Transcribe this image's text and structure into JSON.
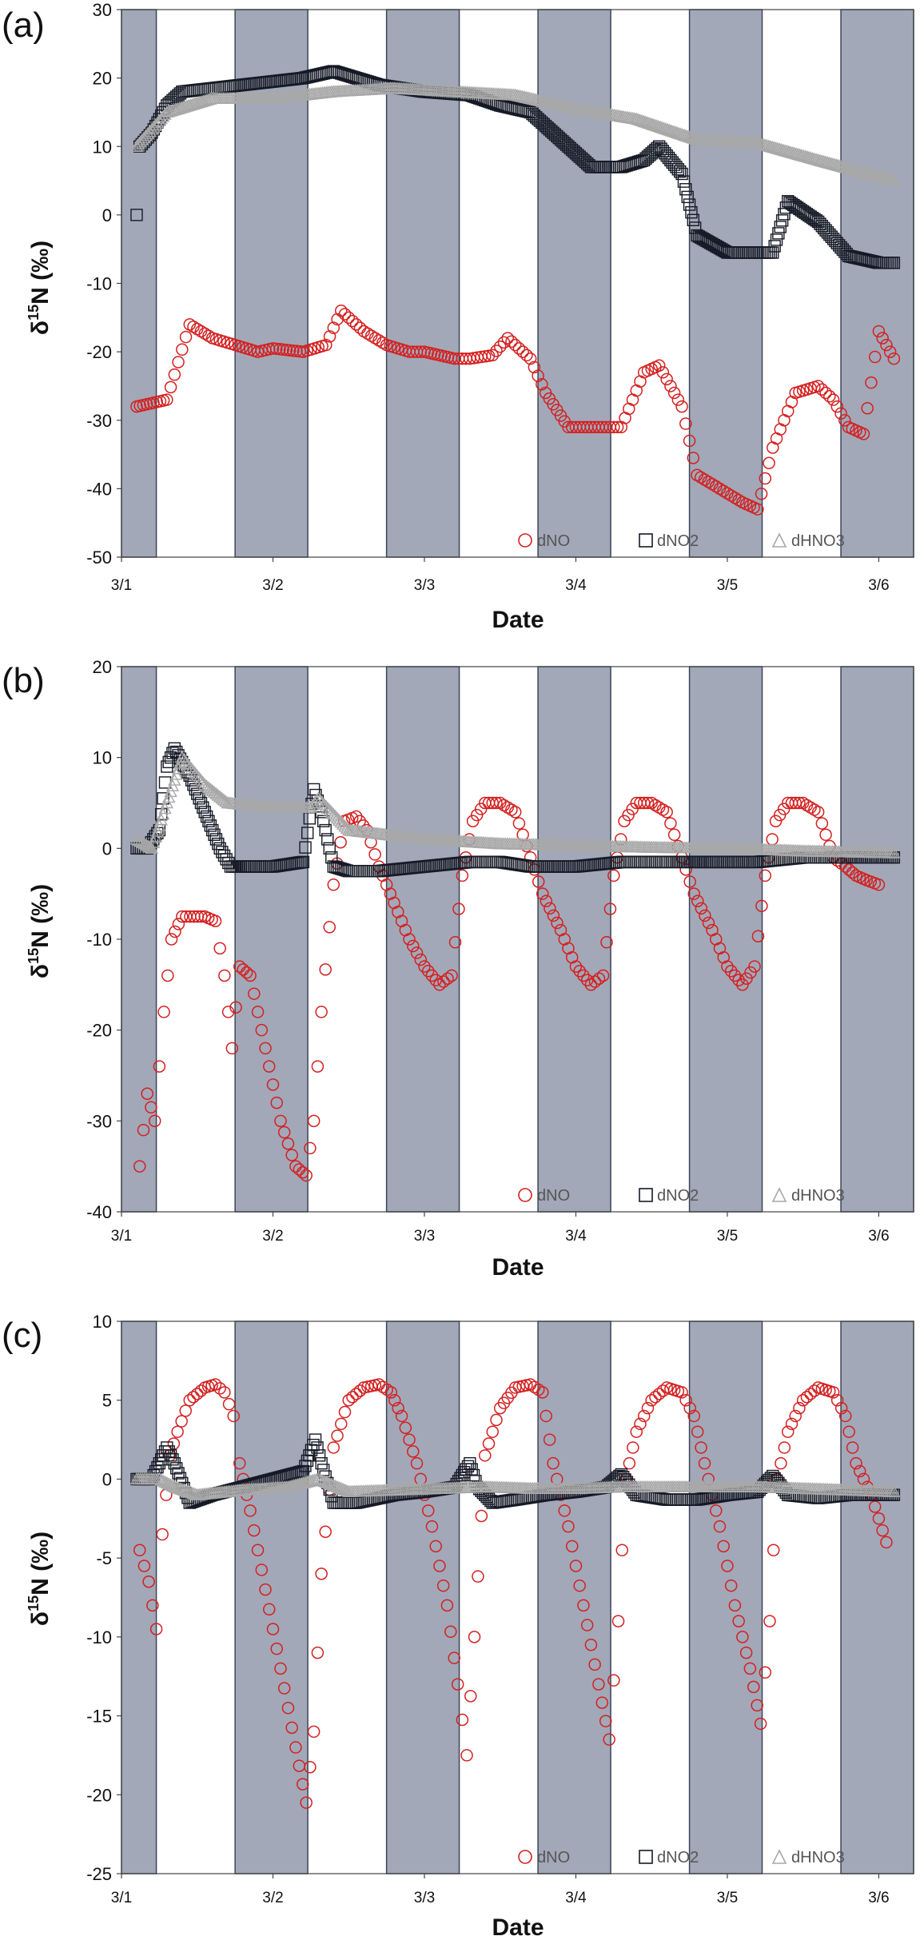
{
  "colors": {
    "night_band": "#a2a8b8",
    "night_band_edge": "#3c4558",
    "dNO": "#d42020",
    "dNO2": "#161a26",
    "dHNO3": "#a8a8a8"
  },
  "chart_data": [
    {
      "type": "scatter",
      "panel_label": "(a)",
      "title": "",
      "xlabel": "Date",
      "ylabel": "δ15N (‰)",
      "ylabel_main": "δ",
      "ylabel_sup": "15",
      "ylabel_tail": "N (‰)",
      "x_unit": "days (Mar 1 00:00 = 3/1)",
      "xlim": [
        "3/1 00:00",
        "3/6 12:00"
      ],
      "x_tick_labels": [
        "3/1",
        "3/2",
        "3/3",
        "3/4",
        "3/5",
        "3/6"
      ],
      "ylim": [
        -50,
        30
      ],
      "y_ticks": [
        -50,
        -40,
        -30,
        -20,
        -10,
        0,
        10,
        20,
        30
      ],
      "shaded_bands_note": "night periods",
      "legend": [
        "dNO",
        "dNO2",
        "dHNO3"
      ],
      "legend_position": "bottom-right inside",
      "series": [
        {
          "name": "dNO",
          "marker": "circle",
          "x": [
            1.1,
            1.3,
            1.45,
            1.6,
            1.75,
            1.9,
            2.0,
            2.2,
            2.35,
            2.45,
            2.6,
            2.75,
            2.9,
            3.0,
            3.2,
            3.3,
            3.45,
            3.55,
            3.7,
            3.8,
            3.95,
            4.1,
            4.2,
            4.3,
            4.45,
            4.55,
            4.7,
            4.8,
            4.95,
            5.1,
            5.2,
            5.3,
            5.45,
            5.6,
            5.7,
            5.8,
            5.9,
            6.0,
            6.1
          ],
          "y": [
            -28,
            -27,
            -16,
            -18,
            -19,
            -20,
            -19.5,
            -20,
            -19,
            -14,
            -17,
            -19,
            -20,
            -20,
            -21,
            -21,
            -20.5,
            -18,
            -21,
            -26,
            -31,
            -31,
            -31,
            -31,
            -23,
            -22,
            -28,
            -38,
            -40,
            -42,
            -43,
            -34,
            -26,
            -25,
            -27,
            -31,
            -32,
            -17,
            -21
          ]
        },
        {
          "name": "dNO2",
          "marker": "square",
          "x": [
            1.1,
            1.12,
            1.2,
            1.3,
            1.4,
            1.6,
            1.8,
            2.0,
            2.2,
            2.4,
            2.55,
            2.7,
            3.0,
            3.3,
            3.5,
            3.7,
            3.9,
            4.1,
            4.3,
            4.45,
            4.55,
            4.7,
            4.8,
            5.0,
            5.2,
            5.3,
            5.4,
            5.6,
            5.8,
            6.0,
            6.1
          ],
          "y": [
            0,
            10,
            12,
            16,
            18,
            18.5,
            19,
            19.5,
            20,
            21,
            20,
            19,
            18,
            17.5,
            16,
            15,
            11,
            7,
            7,
            8,
            10,
            6,
            -3,
            -5.5,
            -5.5,
            -5.5,
            2,
            -1,
            -6,
            -7,
            -7
          ]
        },
        {
          "name": "dHNO3",
          "marker": "triangle",
          "x": [
            1.1,
            1.3,
            1.6,
            2.0,
            2.4,
            2.8,
            3.2,
            3.6,
            4.0,
            4.4,
            4.8,
            5.2,
            5.6,
            6.1
          ],
          "y": [
            10,
            15,
            17,
            17,
            18,
            18.5,
            18,
            17.5,
            15.5,
            14,
            11,
            10.5,
            8,
            5
          ]
        }
      ]
    },
    {
      "type": "scatter",
      "panel_label": "(b)",
      "title": "",
      "xlabel": "Date",
      "ylabel": "δ15N (‰)",
      "ylabel_main": "δ",
      "ylabel_sup": "15",
      "ylabel_tail": "N (‰)",
      "x_unit": "days (Mar 1 00:00 = 3/1)",
      "xlim": [
        "3/1 00:00",
        "3/6 12:00"
      ],
      "x_tick_labels": [
        "3/1",
        "3/2",
        "3/3",
        "3/4",
        "3/5",
        "3/6"
      ],
      "ylim": [
        -40,
        20
      ],
      "y_ticks": [
        -40,
        -30,
        -20,
        -10,
        0,
        10,
        20
      ],
      "shaded_bands_note": "night periods",
      "legend": [
        "dNO",
        "dNO2",
        "dHNO3"
      ],
      "legend_position": "bottom-right inside",
      "series": [
        {
          "name": "dNO",
          "marker": "circle",
          "x": [
            1.12,
            1.17,
            1.22,
            1.28,
            1.33,
            1.4,
            1.48,
            1.55,
            1.62,
            1.68,
            1.73,
            1.78,
            1.85,
            1.95,
            2.05,
            2.15,
            2.22,
            2.27,
            2.32,
            2.4,
            2.47,
            2.55,
            2.62,
            2.7,
            2.8,
            2.9,
            3.0,
            3.1,
            3.18,
            3.25,
            3.32,
            3.4,
            3.5,
            3.6,
            3.7,
            3.78,
            3.9,
            4.0,
            4.1,
            4.18,
            4.25,
            4.32,
            4.4,
            4.5,
            4.6,
            4.7,
            4.78,
            4.9,
            5.0,
            5.1,
            5.18,
            5.25,
            5.32,
            5.4,
            5.5,
            5.6,
            5.7,
            5.78,
            5.85,
            5.92,
            6.0
          ],
          "y": [
            -35,
            -27,
            -30,
            -18,
            -10,
            -7.5,
            -7.5,
            -7.5,
            -8,
            -14,
            -22,
            -13,
            -14,
            -22,
            -30,
            -35,
            -36,
            -30,
            -18,
            -4,
            3,
            3.5,
            2,
            -2,
            -6,
            -10,
            -13,
            -15,
            -14,
            -3,
            3,
            5,
            5,
            4,
            -1,
            -5,
            -9,
            -13,
            -15,
            -14,
            -3,
            3,
            5,
            5,
            4,
            -1,
            -5,
            -9,
            -13,
            -15,
            -13,
            -3,
            3,
            5,
            5,
            4,
            -1,
            -2,
            -3,
            -3.5,
            -4
          ]
        },
        {
          "name": "dNO2",
          "marker": "square",
          "x": [
            1.1,
            1.17,
            1.25,
            1.3,
            1.35,
            1.45,
            1.55,
            1.65,
            1.72,
            1.8,
            2.0,
            2.2,
            2.27,
            2.32,
            2.4,
            2.5,
            2.7,
            3.0,
            3.3,
            3.5,
            3.7,
            4.0,
            4.3,
            4.6,
            4.9,
            5.2,
            5.5,
            5.8,
            6.1
          ],
          "y": [
            0,
            0,
            2,
            9,
            11,
            8,
            4,
            0,
            -2,
            -2,
            -2,
            -1.5,
            6.5,
            4,
            -2,
            -2.5,
            -2.5,
            -2,
            -1.5,
            -1.5,
            -2,
            -2,
            -1.5,
            -1.5,
            -1.5,
            -1.5,
            -1,
            -1,
            -1
          ]
        },
        {
          "name": "dHNO3",
          "marker": "triangle",
          "x": [
            1.1,
            1.2,
            1.3,
            1.4,
            1.55,
            1.7,
            2.0,
            2.25,
            2.3,
            2.5,
            3.0,
            3.5,
            4.0,
            4.5,
            5.0,
            5.5,
            6.1
          ],
          "y": [
            1,
            0,
            5,
            10,
            7,
            5,
            4.5,
            4.5,
            5.5,
            2,
            1,
            0.5,
            0.3,
            0.1,
            0,
            -0.3,
            -0.5
          ]
        }
      ]
    },
    {
      "type": "scatter",
      "panel_label": "(c)",
      "title": "",
      "xlabel": "Date",
      "ylabel": "δ15N (‰)",
      "ylabel_main": "δ",
      "ylabel_sup": "15",
      "ylabel_tail": "N (‰)",
      "x_unit": "days (Mar 1 00:00 = 3/1)",
      "xlim": [
        "3/1 00:00",
        "3/6 12:00"
      ],
      "x_tick_labels": [
        "3/1",
        "3/2",
        "3/3",
        "3/4",
        "3/5",
        "3/6"
      ],
      "ylim": [
        -25,
        10
      ],
      "y_ticks": [
        -25,
        -20,
        -15,
        -10,
        -5,
        0,
        5,
        10
      ],
      "shaded_bands_note": "night periods",
      "legend": [
        "dNO",
        "dNO2",
        "dHNO3"
      ],
      "legend_position": "bottom-right inside",
      "series": [
        {
          "name": "dNO",
          "marker": "circle",
          "x": [
            1.12,
            1.18,
            1.23,
            1.27,
            1.32,
            1.37,
            1.45,
            1.55,
            1.62,
            1.68,
            1.74,
            1.78,
            1.85,
            1.95,
            2.05,
            2.15,
            2.22,
            2.27,
            2.32,
            2.4,
            2.5,
            2.6,
            2.7,
            2.78,
            2.85,
            2.95,
            3.05,
            3.15,
            3.22,
            3.28,
            3.33,
            3.4,
            3.5,
            3.6,
            3.7,
            3.78,
            3.85,
            3.95,
            4.05,
            4.15,
            4.22,
            4.28,
            4.33,
            4.4,
            4.5,
            4.6,
            4.7,
            4.78,
            4.85,
            4.95,
            5.05,
            5.15,
            5.22,
            5.28,
            5.33,
            5.4,
            5.5,
            5.6,
            5.7,
            5.78,
            5.85,
            5.95,
            6.05
          ],
          "y": [
            -4.5,
            -6.5,
            -9.5,
            -3.5,
            1.5,
            3,
            5,
            5.8,
            6,
            5.5,
            4,
            1,
            -2,
            -7,
            -12,
            -17,
            -20.5,
            -16,
            -6,
            2,
            5,
            5.8,
            6,
            5.5,
            4,
            1,
            -3,
            -8,
            -13,
            -17.5,
            -10,
            1.5,
            4.5,
            5.8,
            6,
            5.5,
            1,
            -3,
            -8,
            -13,
            -16.5,
            -9,
            0,
            3,
            5,
            5.8,
            5.5,
            4,
            1,
            -3,
            -8,
            -12,
            -15.5,
            -9,
            0,
            3,
            5,
            5.8,
            5.5,
            4,
            1,
            -1,
            -4
          ]
        },
        {
          "name": "dNO2",
          "marker": "square",
          "x": [
            1.1,
            1.2,
            1.3,
            1.35,
            1.45,
            1.6,
            1.8,
            2.0,
            2.2,
            2.28,
            2.32,
            2.4,
            2.55,
            2.8,
            3.0,
            3.2,
            3.3,
            3.35,
            3.45,
            3.6,
            3.8,
            4.0,
            4.2,
            4.3,
            4.4,
            4.6,
            4.8,
            5.0,
            5.2,
            5.3,
            5.4,
            5.6,
            5.8,
            6.1
          ],
          "y": [
            0,
            0,
            2,
            1,
            -1.5,
            -1,
            -0.5,
            0,
            0.5,
            2.5,
            1,
            -1.5,
            -1.5,
            -1,
            -0.8,
            -0.5,
            1,
            -0.5,
            -1.5,
            -1.3,
            -1,
            -0.8,
            -0.5,
            0.3,
            -1,
            -1.3,
            -1.3,
            -1,
            -0.8,
            0.2,
            -1,
            -1.2,
            -1,
            -1
          ]
        },
        {
          "name": "dHNO3",
          "marker": "triangle",
          "x": [
            1.1,
            1.25,
            1.35,
            1.5,
            1.8,
            2.1,
            2.3,
            2.5,
            2.8,
            3.1,
            3.4,
            3.7,
            4.0,
            4.3,
            4.6,
            4.9,
            5.2,
            5.5,
            5.8,
            6.1
          ],
          "y": [
            0,
            0,
            -0.5,
            -1,
            -0.7,
            -0.5,
            0,
            -0.8,
            -0.7,
            -0.6,
            -0.5,
            -0.6,
            -0.6,
            -0.5,
            -0.5,
            -0.5,
            -0.5,
            -0.6,
            -0.7,
            -0.8
          ]
        }
      ]
    }
  ]
}
